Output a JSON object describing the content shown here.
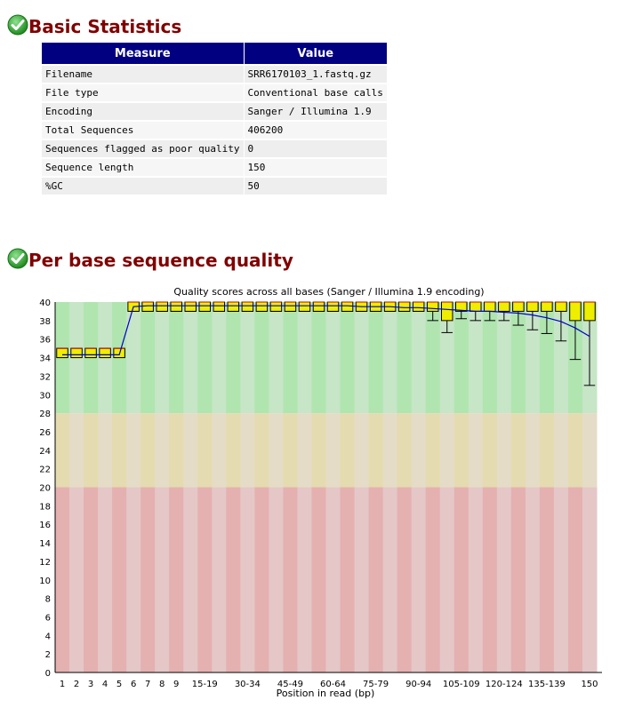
{
  "basic_statistics": {
    "title": "Basic Statistics",
    "status_icon": "pass-check-icon",
    "header": {
      "measure": "Measure",
      "value": "Value"
    },
    "rows": [
      {
        "measure": "Filename",
        "value": "SRR6170103_1.fastq.gz"
      },
      {
        "measure": "File type",
        "value": "Conventional base calls"
      },
      {
        "measure": "Encoding",
        "value": "Sanger / Illumina 1.9"
      },
      {
        "measure": "Total Sequences",
        "value": "406200"
      },
      {
        "measure": "Sequences flagged as poor quality",
        "value": "0"
      },
      {
        "measure": "Sequence length",
        "value": "150"
      },
      {
        "measure": "%GC",
        "value": "50"
      }
    ]
  },
  "per_base_quality": {
    "title": "Per base sequence quality",
    "status_icon": "pass-check-icon"
  },
  "colors": {
    "pass_check": "#2ea02e",
    "title": "#800000",
    "table_header": "#000080",
    "box_fill": "#eeee00",
    "mean_line": "#0000cc",
    "median_line": "#cc0000",
    "zone_good": [
      "#b0e5b0",
      "#c7e5c7"
    ],
    "zone_ok": [
      "#e5dbb0",
      "#e5dcc7"
    ],
    "zone_bad": [
      "#e5b0b0",
      "#e5c7c7"
    ]
  },
  "chart_data": {
    "type": "box",
    "title": "Quality scores across all bases (Sanger / Illumina 1.9 encoding)",
    "xlabel": "Position in read (bp)",
    "ylabel": "",
    "ylim": [
      0,
      40
    ],
    "yticks": [
      0,
      2,
      4,
      6,
      8,
      10,
      12,
      14,
      16,
      18,
      20,
      22,
      24,
      26,
      28,
      30,
      32,
      34,
      36,
      38,
      40
    ],
    "zones": [
      {
        "name": "good",
        "from": 28,
        "to": 40
      },
      {
        "name": "reasonable",
        "from": 20,
        "to": 28
      },
      {
        "name": "poor",
        "from": 0,
        "to": 20
      }
    ],
    "categories": [
      "1",
      "2",
      "3",
      "4",
      "5",
      "6",
      "7",
      "8",
      "9",
      "10-14",
      "15-19",
      "20-24",
      "25-29",
      "30-34",
      "35-39",
      "40-44",
      "45-49",
      "50-54",
      "55-59",
      "60-64",
      "65-69",
      "70-74",
      "75-79",
      "80-84",
      "85-89",
      "90-94",
      "95-99",
      "100-104",
      "105-109",
      "110-114",
      "115-119",
      "120-124",
      "125-129",
      "130-134",
      "135-139",
      "140-144",
      "145-149",
      "150"
    ],
    "tick_labels": [
      "1",
      "2",
      "3",
      "4",
      "5",
      "6",
      "7",
      "8",
      "9",
      "15-19",
      "30-34",
      "45-49",
      "60-64",
      "75-79",
      "90-94",
      "105-109",
      "120-124",
      "135-139",
      "150"
    ],
    "series": [
      {
        "name": "mean",
        "values": [
          34.3,
          34.3,
          34.3,
          34.3,
          34.3,
          39.5,
          39.6,
          39.6,
          39.6,
          39.6,
          39.6,
          39.6,
          39.6,
          39.6,
          39.6,
          39.6,
          39.6,
          39.6,
          39.6,
          39.6,
          39.6,
          39.5,
          39.5,
          39.5,
          39.4,
          39.4,
          39.3,
          39.2,
          39.1,
          39.0,
          39.0,
          38.9,
          38.8,
          38.6,
          38.3,
          37.9,
          37.2,
          36.3
        ]
      },
      {
        "name": "median",
        "values": [
          35,
          35,
          35,
          35,
          35,
          40,
          40,
          40,
          40,
          40,
          40,
          40,
          40,
          40,
          40,
          40,
          40,
          40,
          40,
          40,
          40,
          40,
          40,
          40,
          40,
          40,
          40,
          40,
          40,
          40,
          40,
          40,
          40,
          40,
          40,
          40,
          40,
          40
        ]
      },
      {
        "name": "lower_quartile",
        "values": [
          34,
          34,
          34,
          34,
          34,
          39,
          39,
          39,
          39,
          39,
          39,
          39,
          39,
          39,
          39,
          39,
          39,
          39,
          39,
          39,
          39,
          39,
          39,
          39,
          39,
          39,
          39,
          38,
          39,
          39,
          39,
          39,
          39,
          39,
          39,
          39,
          38,
          38
        ]
      },
      {
        "name": "upper_quartile",
        "values": [
          35,
          35,
          35,
          35,
          35,
          40,
          40,
          40,
          40,
          40,
          40,
          40,
          40,
          40,
          40,
          40,
          40,
          40,
          40,
          40,
          40,
          40,
          40,
          40,
          40,
          40,
          40,
          40,
          40,
          40,
          40,
          40,
          40,
          40,
          40,
          40,
          40,
          40
        ]
      },
      {
        "name": "p10",
        "values": [
          34,
          34,
          34,
          34,
          34,
          39,
          39,
          39,
          39,
          39,
          39,
          39,
          39,
          39,
          39,
          39,
          39,
          39,
          39,
          39,
          39,
          39,
          39,
          39,
          39,
          39,
          38,
          36.7,
          38.2,
          38,
          38,
          38,
          37.5,
          37,
          36.6,
          35.8,
          33.8,
          31
        ]
      },
      {
        "name": "p90",
        "values": [
          35,
          35,
          35,
          35,
          35,
          40,
          40,
          40,
          40,
          40,
          40,
          40,
          40,
          40,
          40,
          40,
          40,
          40,
          40,
          40,
          40,
          40,
          40,
          40,
          40,
          40,
          40,
          40,
          40,
          40,
          40,
          40,
          40,
          40,
          40,
          40,
          40,
          40
        ]
      }
    ]
  }
}
